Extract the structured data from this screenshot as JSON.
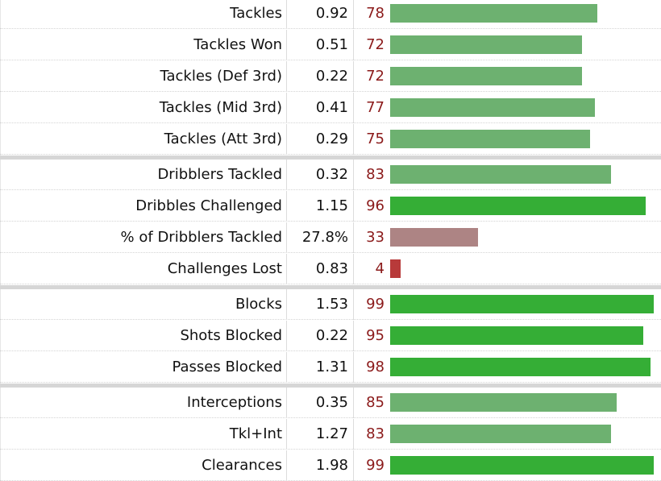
{
  "chart_data": {
    "type": "bar",
    "orientation": "horizontal",
    "xlim": [
      0,
      100
    ],
    "colors": {
      "elite": "#35ae36",
      "above_average": "#6db170",
      "below_average": "#ad8484",
      "poor": "#b83a3a"
    },
    "groups": [
      {
        "rows": [
          {
            "label": "Tackles",
            "per90": "0.92",
            "percentile": 78
          },
          {
            "label": "Tackles Won",
            "per90": "0.51",
            "percentile": 72
          },
          {
            "label": "Tackles (Def 3rd)",
            "per90": "0.22",
            "percentile": 72
          },
          {
            "label": "Tackles (Mid 3rd)",
            "per90": "0.41",
            "percentile": 77
          },
          {
            "label": "Tackles (Att 3rd)",
            "per90": "0.29",
            "percentile": 75
          }
        ]
      },
      {
        "rows": [
          {
            "label": "Dribblers Tackled",
            "per90": "0.32",
            "percentile": 83
          },
          {
            "label": "Dribbles Challenged",
            "per90": "1.15",
            "percentile": 96
          },
          {
            "label": "% of Dribblers Tackled",
            "per90": "27.8%",
            "percentile": 33
          },
          {
            "label": "Challenges Lost",
            "per90": "0.83",
            "percentile": 4
          }
        ]
      },
      {
        "rows": [
          {
            "label": "Blocks",
            "per90": "1.53",
            "percentile": 99
          },
          {
            "label": "Shots Blocked",
            "per90": "0.22",
            "percentile": 95
          },
          {
            "label": "Passes Blocked",
            "per90": "1.31",
            "percentile": 98
          }
        ]
      },
      {
        "rows": [
          {
            "label": "Interceptions",
            "per90": "0.35",
            "percentile": 85
          },
          {
            "label": "Tkl+Int",
            "per90": "1.27",
            "percentile": 83
          },
          {
            "label": "Clearances",
            "per90": "1.98",
            "percentile": 99
          }
        ]
      }
    ]
  }
}
